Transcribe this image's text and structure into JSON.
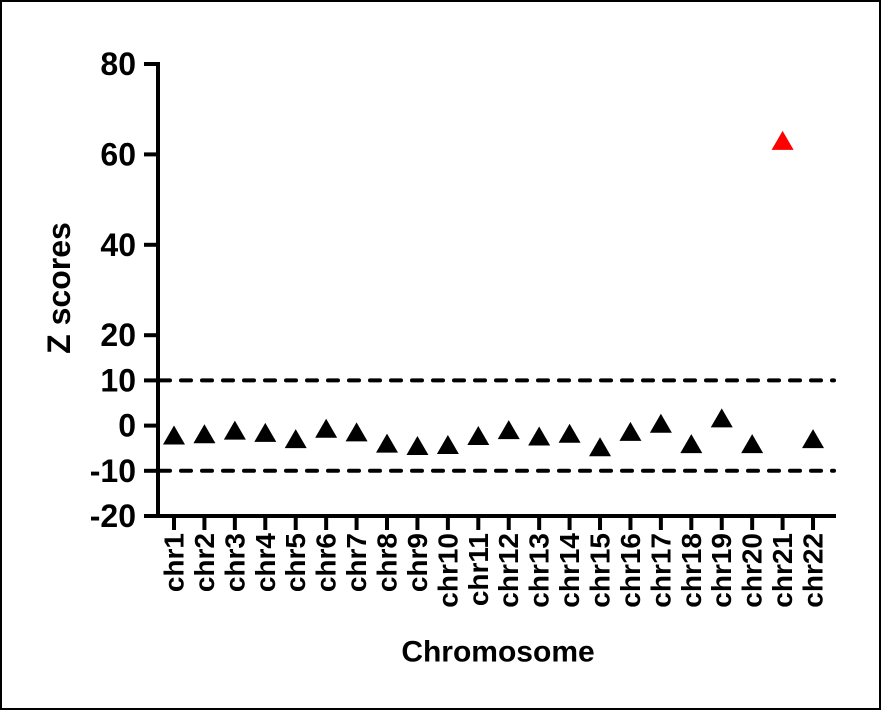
{
  "chart_data": {
    "type": "scatter",
    "marker": "triangle-up",
    "title": "",
    "xlabel": "Chromosome",
    "ylabel": "Z scores",
    "categories": [
      "chr1",
      "chr2",
      "chr3",
      "chr4",
      "chr5",
      "chr6",
      "chr7",
      "chr8",
      "chr9",
      "chr10",
      "chr11",
      "chr12",
      "chr13",
      "chr14",
      "chr15",
      "chr16",
      "chr17",
      "chr18",
      "chr19",
      "chr20",
      "chr21",
      "chr22"
    ],
    "values": [
      -2.2,
      -1.9,
      -1.1,
      -1.6,
      -3.0,
      -0.7,
      -1.5,
      -4.0,
      -4.5,
      -4.3,
      -2.3,
      -1.0,
      -2.4,
      -1.8,
      -4.8,
      -1.4,
      0.4,
      -4.1,
      1.6,
      -4.1,
      63.0,
      -3.0
    ],
    "point_colors": [
      "#000000",
      "#000000",
      "#000000",
      "#000000",
      "#000000",
      "#000000",
      "#000000",
      "#000000",
      "#000000",
      "#000000",
      "#000000",
      "#000000",
      "#000000",
      "#000000",
      "#000000",
      "#000000",
      "#000000",
      "#000000",
      "#000000",
      "#000000",
      "#ff0000",
      "#000000"
    ],
    "highlight": {
      "category": "chr21",
      "value": 63.0,
      "color": "#ff0000"
    },
    "ylim": [
      -20,
      80
    ],
    "yticks": [
      80,
      60,
      40,
      20,
      10,
      0,
      -10,
      -20
    ],
    "threshold_lines": {
      "values": [
        10,
        -10
      ],
      "style": "dashed",
      "color": "#000000"
    },
    "grid": false,
    "legend": false,
    "axis_color": "#000000",
    "default_marker_color": "#000000",
    "background_color": "#ffffff",
    "frame_color": "#000000"
  }
}
